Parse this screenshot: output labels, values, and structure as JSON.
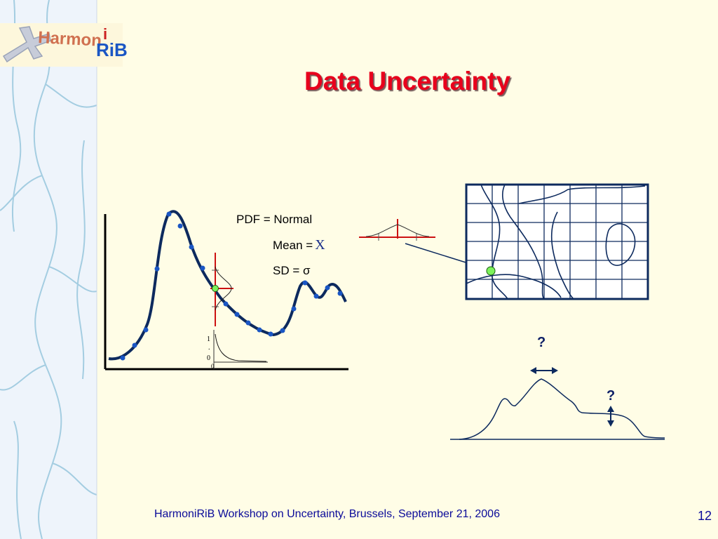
{
  "slide": {
    "title": "Data Uncertainty",
    "footer": "HarmoniRiB Workshop on Uncertainty, Brussels, September 21, 2006",
    "page_number": "12"
  },
  "logo": {
    "part1": "Harmon",
    "part2_i": "i",
    "part2_rib": "RiB"
  },
  "annotations": {
    "pdf_label": "PDF = Normal",
    "mean_label": "Mean =",
    "mean_symbol": "X",
    "sd_label": "SD = σ",
    "question_1": "?",
    "question_2": "?"
  },
  "inset_axis": {
    "tick_top": "1",
    "tick_dot": ".",
    "tick_bottom": "0",
    "tick_below": "0"
  },
  "colors": {
    "background": "#fffde6",
    "sidebar": "#eef4fb",
    "title_red": "#e8001c",
    "navy": "#0d2a5e",
    "point_blue": "#1a56c4",
    "highlight_green": "#7cf25a",
    "marker_red": "#cc1111"
  }
}
